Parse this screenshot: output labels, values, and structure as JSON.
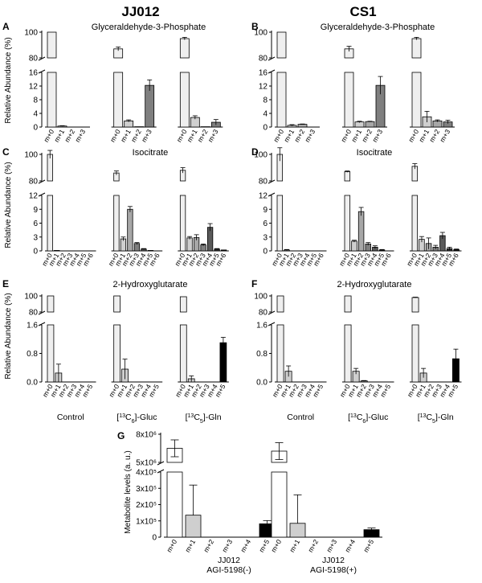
{
  "column_titles": [
    "JJ012",
    "CS1"
  ],
  "panel_letters": [
    "A",
    "B",
    "C",
    "D",
    "E",
    "F",
    "G"
  ],
  "group_labels": [
    "Control",
    "[13C6]-Gluc",
    "[13C5]-Gln"
  ],
  "ylabel_main": "Relative Abundance (%)",
  "ylabel_g": "Metabolite levels (a. u.)",
  "colors": {
    "m+0": "#efefef",
    "m+1": "#cfcfcf",
    "m+2": "#a7a7a7",
    "m+3": "#7f7f7f",
    "m+4": "#5a5a5a",
    "m+5": "#303030",
    "m+6": "#111111",
    "gln_m+5": "#000000"
  },
  "chart_data": [
    {
      "id": "A",
      "type": "bar",
      "title": "Glyceraldehyde-3-Phosphate",
      "ylabel": "Relative Abundance (%)",
      "categories": [
        "m+0",
        "m+1",
        "m+2",
        "m+3"
      ],
      "group_labels": [],
      "ylim_low": [
        0,
        16
      ],
      "ylim_high": [
        80,
        100
      ],
      "yticks_low": [
        "0",
        "4",
        "8",
        "12",
        "16"
      ],
      "yticks_high": [
        "80",
        "100"
      ],
      "series": [
        {
          "values": [
            100,
            0.3,
            0,
            0
          ],
          "errors": [
            0,
            0.1,
            0,
            0
          ]
        },
        {
          "values": [
            87,
            1.8,
            0.1,
            12.2
          ],
          "errors": [
            1.5,
            0.3,
            0,
            1.6
          ]
        },
        {
          "values": [
            95,
            2.8,
            0.1,
            1.4
          ],
          "errors": [
            1.0,
            0.5,
            0,
            0.8
          ]
        }
      ]
    },
    {
      "id": "B",
      "type": "bar",
      "title": "Glyceraldehyde-3-Phosphate",
      "ylabel": "",
      "categories": [
        "m+0",
        "m+1",
        "m+2",
        "m+3"
      ],
      "group_labels": [],
      "ylim_low": [
        0,
        16
      ],
      "ylim_high": [
        80,
        100
      ],
      "yticks_low": [
        "0",
        "4",
        "8",
        "12",
        "16"
      ],
      "yticks_high": [
        "80",
        "100"
      ],
      "series": [
        {
          "values": [
            100,
            0.5,
            0.8,
            0
          ],
          "errors": [
            0,
            0.2,
            0.1,
            0
          ]
        },
        {
          "values": [
            87,
            1.5,
            1.6,
            12.2
          ],
          "errors": [
            2.0,
            0.2,
            0.1,
            2.6
          ]
        },
        {
          "values": [
            95,
            3.0,
            1.8,
            1.5
          ],
          "errors": [
            1.0,
            1.6,
            0.3,
            0.5
          ]
        }
      ]
    },
    {
      "id": "C",
      "type": "bar",
      "title": "Isocitrate",
      "ylabel": "Relative Abundance (%)",
      "categories": [
        "m+0",
        "m+1",
        "m+2",
        "m+3",
        "m+4",
        "m+5",
        "m+6"
      ],
      "group_labels": [],
      "ylim_low": [
        0,
        12
      ],
      "ylim_high": [
        80,
        100
      ],
      "yticks_low": [
        "0",
        "3",
        "6",
        "9",
        "12"
      ],
      "yticks_high": [
        "80",
        "100"
      ],
      "series": [
        {
          "values": [
            100,
            0.1,
            0,
            0,
            0,
            0,
            0
          ],
          "errors": [
            3,
            0,
            0,
            0,
            0,
            0,
            0
          ]
        },
        {
          "values": [
            86,
            2.6,
            9.0,
            1.6,
            0.4,
            0.1,
            0
          ],
          "errors": [
            1.5,
            0.4,
            0.6,
            0.2,
            0.1,
            0,
            0
          ]
        },
        {
          "values": [
            88,
            2.8,
            2.9,
            1.3,
            5.1,
            0.4,
            0.2
          ],
          "errors": [
            2.0,
            0.3,
            0.6,
            0.2,
            0.8,
            0.1,
            0
          ]
        }
      ]
    },
    {
      "id": "D",
      "type": "bar",
      "title": "Isocitrate",
      "ylabel": "",
      "categories": [
        "m+0",
        "m+1",
        "m+2",
        "m+3",
        "m+4",
        "m+5",
        "m+6"
      ],
      "group_labels": [],
      "ylim_low": [
        0,
        12
      ],
      "ylim_high": [
        80,
        100
      ],
      "yticks_low": [
        "0",
        "3",
        "6",
        "9",
        "12"
      ],
      "yticks_high": [
        "80",
        "100"
      ],
      "series": [
        {
          "values": [
            100,
            0.2,
            0,
            0,
            0,
            0,
            0
          ],
          "errors": [
            5,
            0.1,
            0,
            0,
            0,
            0,
            0
          ]
        },
        {
          "values": [
            87,
            2.1,
            8.5,
            1.5,
            0.8,
            0.2,
            0
          ],
          "errors": [
            0.5,
            0.2,
            0.9,
            0.3,
            0.3,
            0.1,
            0
          ]
        },
        {
          "values": [
            91,
            2.5,
            1.6,
            0.8,
            3.3,
            0.5,
            0.3
          ],
          "errors": [
            2.0,
            0.6,
            1.2,
            0.4,
            0.7,
            0.3,
            0.1
          ]
        }
      ]
    },
    {
      "id": "E",
      "type": "bar",
      "title": "2-Hydroxyglutarate",
      "ylabel": "Relative Abundance (%)",
      "categories": [
        "m+0",
        "m+1",
        "m+2",
        "m+3",
        "m+4",
        "m+5"
      ],
      "group_labels": [
        "Control",
        "[13C6]-Gluc",
        "[13C5]-Gln"
      ],
      "ylim_low": [
        0,
        1.6
      ],
      "ylim_high": [
        80,
        100
      ],
      "yticks_low": [
        "0.0",
        "0.8",
        "1.6"
      ],
      "yticks_high": [
        "80",
        "100"
      ],
      "series": [
        {
          "values": [
            100,
            0.25,
            0,
            0,
            0,
            0
          ],
          "errors": [
            0,
            0.25,
            0,
            0,
            0,
            0
          ]
        },
        {
          "values": [
            100,
            0.36,
            0,
            0,
            0,
            0
          ],
          "errors": [
            0,
            0.28,
            0,
            0,
            0,
            0
          ]
        },
        {
          "values": [
            99,
            0.09,
            0,
            0,
            0,
            1.1
          ],
          "errors": [
            0,
            0.08,
            0,
            0,
            0,
            0.15
          ]
        }
      ]
    },
    {
      "id": "F",
      "type": "bar",
      "title": "2-Hydroxyglutarate",
      "ylabel": "",
      "categories": [
        "m+0",
        "m+1",
        "m+2",
        "m+3",
        "m+4",
        "m+5"
      ],
      "group_labels": [
        "Control",
        "[13C6]-Gluc",
        "[13C5]-Gln"
      ],
      "ylim_low": [
        0,
        1.6
      ],
      "ylim_high": [
        80,
        100
      ],
      "yticks_low": [
        "0.0",
        "0.8",
        "1.6"
      ],
      "yticks_high": [
        "80",
        "100"
      ],
      "series": [
        {
          "values": [
            100,
            0.3,
            0,
            0,
            0,
            0
          ],
          "errors": [
            0,
            0.15,
            0,
            0,
            0,
            0
          ]
        },
        {
          "values": [
            100,
            0.3,
            0.03,
            0,
            0,
            0
          ],
          "errors": [
            0,
            0.08,
            0.01,
            0,
            0,
            0
          ]
        },
        {
          "values": [
            98,
            0.25,
            0,
            0,
            0,
            0.65
          ],
          "errors": [
            0.5,
            0.13,
            0,
            0,
            0,
            0.27
          ]
        }
      ]
    },
    {
      "id": "G",
      "type": "bar",
      "title": "",
      "ylabel": "Metabolite levels (a. u.)",
      "categories": [
        "m+0",
        "m+1",
        "m+2",
        "m+3",
        "m+4",
        "m+5"
      ],
      "group_labels": [
        {
          "line1": "JJ012",
          "line2": "AGI-5198(-)"
        },
        {
          "line1": "JJ012",
          "line2": "AGI-5198(+)"
        }
      ],
      "yticks_low": [
        "0",
        "1x10⁵",
        "2x10⁵",
        "3x10⁵",
        "4x10⁵"
      ],
      "yticks_high": [
        "5x10⁶",
        "8x10⁶"
      ],
      "series": [
        {
          "values": [
            6500000,
            135000,
            0,
            0,
            0,
            82000
          ],
          "errors": [
            900000,
            185000,
            0,
            0,
            0,
            20000
          ]
        },
        {
          "values": [
            6200000,
            85000,
            0,
            0,
            0,
            46000
          ],
          "errors": [
            900000,
            175000,
            0,
            0,
            0,
            10000
          ]
        }
      ]
    }
  ]
}
